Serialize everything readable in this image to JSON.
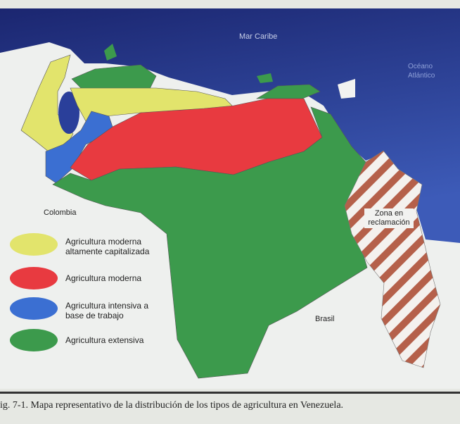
{
  "map": {
    "labels": {
      "sea": "Mar Caribe",
      "ocean": "Océano Atlántico",
      "colombia": "Colombia",
      "brasil": "Brasil",
      "claim_zone": "Zona en reclamación"
    },
    "legend": [
      {
        "label": "Agricultura moderna altamente capitalizada",
        "color": "#e2e46c"
      },
      {
        "label": "Agricultura moderna",
        "color": "#e83a40"
      },
      {
        "label": "Agricultura intensiva a base de trabajo",
        "color": "#3b6fd2"
      },
      {
        "label": "Agricultura extensiva",
        "color": "#3c9a4c"
      }
    ],
    "colors": {
      "sea": "#243a94",
      "claim_stripe": "#b5604a",
      "land_other": "#eef0ee"
    }
  },
  "caption": "ig. 7-1. Mapa representativo de la distribución de los tipos de agricultura en Venezuela."
}
